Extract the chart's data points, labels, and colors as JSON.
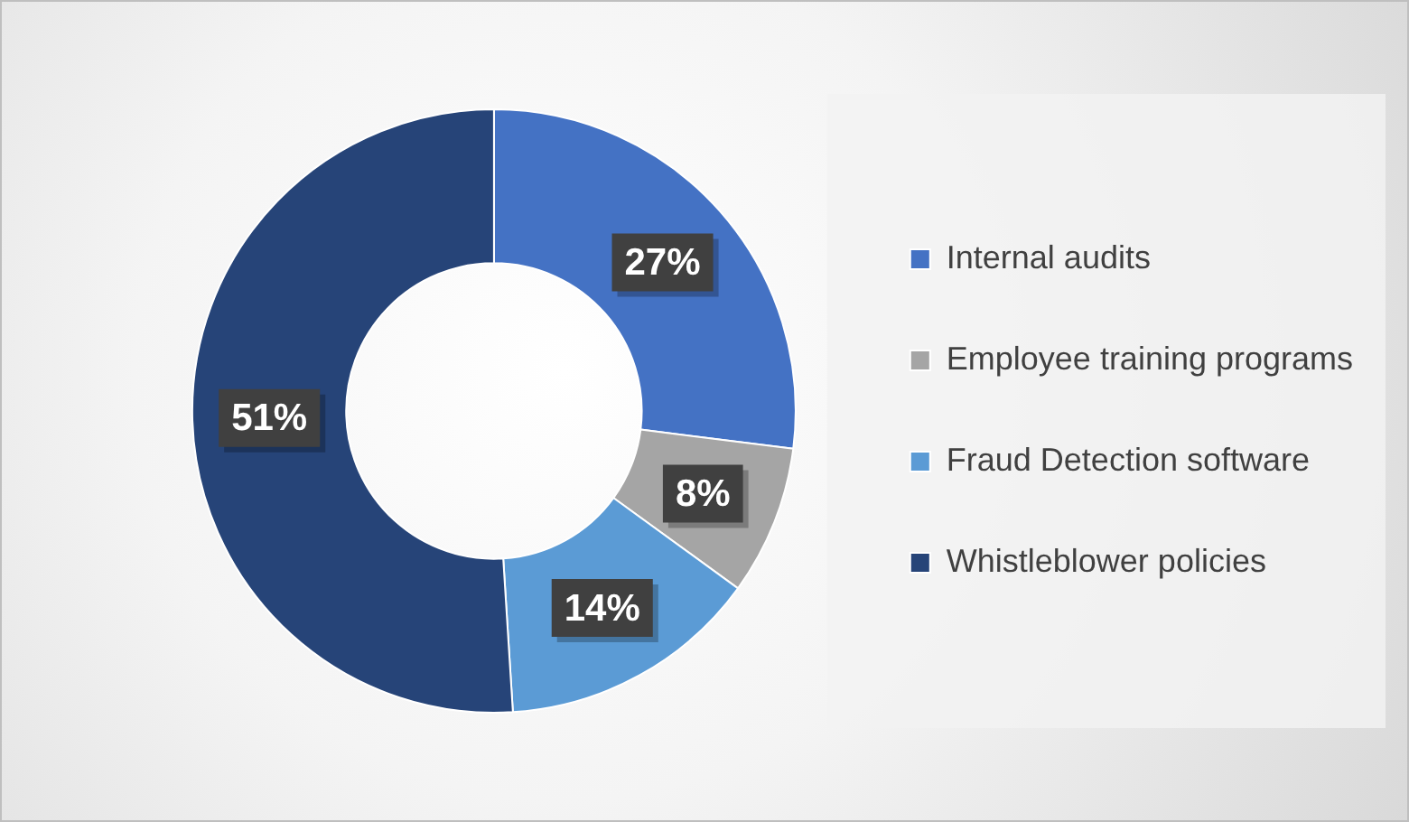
{
  "chart_data": {
    "type": "donut",
    "categories": [
      "Internal audits",
      "Employee training programs",
      "Fraud Detection software",
      "Whistleblower policies"
    ],
    "values": [
      27,
      8,
      14,
      51
    ],
    "value_labels": [
      "27%",
      "8%",
      "14%",
      "51%"
    ],
    "colors": [
      "#4472c4",
      "#a5a5a5",
      "#5b9bd5",
      "#264478"
    ],
    "legend": "right"
  }
}
